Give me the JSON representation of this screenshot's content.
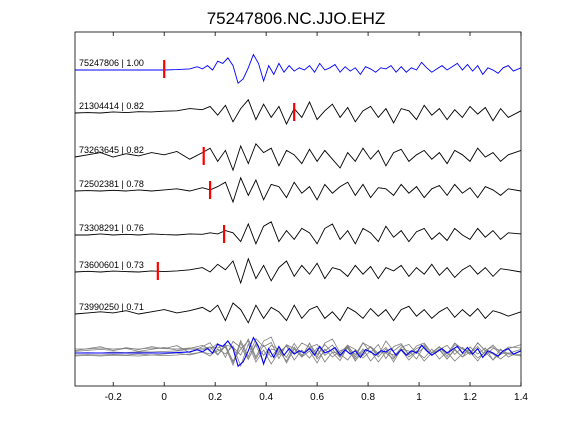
{
  "chart_data": {
    "type": "line",
    "title": "75247806.NC.JJO.EHZ",
    "xlabel": "",
    "ylabel": "",
    "xlim": [
      -0.35,
      1.4
    ],
    "xticks": [
      -0.2,
      0,
      0.2,
      0.4,
      0.6,
      0.8,
      1,
      1.2,
      1.4
    ],
    "xtick_labels": [
      "-0.2",
      "0",
      "0.2",
      "0.4",
      "0.6",
      "0.8",
      "1",
      "1.2",
      "1.4"
    ],
    "grid": false,
    "legend": "none",
    "colors": {
      "reference": "#0000ff",
      "trace": "#000000",
      "stack": "#808080",
      "pick": "#ff0000"
    },
    "series": [
      {
        "label": "75247806 | 1.00",
        "pick_time": 0.0,
        "color": "#0000ff",
        "x": [
          -0.35,
          -0.2,
          -0.05,
          0,
          0.05,
          0.1,
          0.13,
          0.15,
          0.17,
          0.19,
          0.21,
          0.23,
          0.25,
          0.27,
          0.29,
          0.31,
          0.33,
          0.35,
          0.37,
          0.39,
          0.41,
          0.43,
          0.45,
          0.47,
          0.49,
          0.51,
          0.53,
          0.55,
          0.57,
          0.59,
          0.61,
          0.63,
          0.65,
          0.67,
          0.69,
          0.71,
          0.73,
          0.75,
          0.77,
          0.79,
          0.81,
          0.83,
          0.85,
          0.87,
          0.89,
          0.91,
          0.93,
          0.95,
          0.97,
          0.99,
          1.01,
          1.03,
          1.05,
          1.07,
          1.09,
          1.11,
          1.13,
          1.15,
          1.17,
          1.19,
          1.21,
          1.23,
          1.25,
          1.27,
          1.29,
          1.31,
          1.33,
          1.35,
          1.37,
          1.4
        ],
        "y": [
          0,
          0,
          0,
          0,
          0.02,
          0.05,
          0.15,
          0.05,
          0.2,
          0,
          0.4,
          0.3,
          0.55,
          0.2,
          -0.6,
          -0.4,
          0.1,
          0.7,
          0.3,
          -0.5,
          0.2,
          -0.2,
          0.3,
          -0.1,
          0.2,
          -0.05,
          0.1,
          0,
          0.2,
          -0.1,
          0.3,
          0,
          0.1,
          0.25,
          -0.1,
          0.15,
          -0.05,
          0.1,
          -0.2,
          0.15,
          0.05,
          -0.1,
          0.1,
          0.05,
          0.2,
          -0.1,
          0.15,
          -0.1,
          0.1,
          0,
          0.35,
          0.1,
          -0.1,
          0.05,
          0.2,
          0,
          0.15,
          0.3,
          0,
          0.25,
          -0.05,
          0.2,
          -0.2,
          0.1,
          0,
          -0.15,
          0.1,
          0.2,
          -0.05,
          0.1
        ]
      },
      {
        "label": "21304414 | 0.82",
        "pick_time": 0.51,
        "color": "#000000",
        "x": [
          -0.35,
          -0.3,
          -0.25,
          -0.2,
          -0.15,
          -0.1,
          -0.05,
          0,
          0.05,
          0.1,
          0.15,
          0.18,
          0.21,
          0.24,
          0.27,
          0.3,
          0.33,
          0.36,
          0.39,
          0.42,
          0.45,
          0.48,
          0.51,
          0.54,
          0.57,
          0.6,
          0.63,
          0.66,
          0.69,
          0.72,
          0.75,
          0.78,
          0.81,
          0.84,
          0.87,
          0.9,
          0.93,
          0.96,
          0.99,
          1.02,
          1.05,
          1.08,
          1.11,
          1.14,
          1.17,
          1.2,
          1.23,
          1.26,
          1.29,
          1.32,
          1.35,
          1.4
        ],
        "y": [
          0,
          0.02,
          0,
          0.05,
          0.02,
          0.06,
          0.05,
          0.08,
          0.1,
          0.2,
          0.15,
          0.3,
          -0.1,
          0.35,
          -0.4,
          0.2,
          0.6,
          -0.3,
          0.4,
          -0.2,
          0.3,
          -0.5,
          0.2,
          -0.2,
          0.5,
          -0.3,
          0.1,
          0.4,
          -0.2,
          0.25,
          -0.4,
          0.1,
          0.3,
          -0.2,
          0.2,
          -0.45,
          0.2,
          0.1,
          -0.3,
          0.35,
          -0.1,
          0.2,
          -0.3,
          0.15,
          -0.2,
          0.3,
          -0.05,
          0.25,
          -0.35,
          0.2,
          -0.2,
          0.1
        ]
      },
      {
        "label": "73263645 | 0.82",
        "pick_time": 0.155,
        "color": "#000000",
        "x": [
          -0.35,
          -0.3,
          -0.25,
          -0.2,
          -0.15,
          -0.1,
          -0.05,
          0,
          0.05,
          0.1,
          0.15,
          0.18,
          0.21,
          0.24,
          0.27,
          0.3,
          0.33,
          0.36,
          0.39,
          0.42,
          0.45,
          0.48,
          0.51,
          0.54,
          0.57,
          0.6,
          0.63,
          0.66,
          0.69,
          0.72,
          0.75,
          0.78,
          0.81,
          0.84,
          0.87,
          0.9,
          0.93,
          0.96,
          0.99,
          1.02,
          1.05,
          1.08,
          1.11,
          1.14,
          1.17,
          1.2,
          1.23,
          1.26,
          1.29,
          1.32,
          1.35,
          1.4
        ],
        "y": [
          0,
          0.1,
          0.2,
          0,
          0.15,
          0.05,
          0.2,
          0.1,
          0.25,
          -0.1,
          0.2,
          0.4,
          -0.2,
          0.3,
          -0.6,
          0.5,
          -0.3,
          0.6,
          0.2,
          0.4,
          -0.4,
          0.3,
          0.1,
          -0.3,
          0.35,
          -0.2,
          0.3,
          -0.1,
          -0.5,
          0.2,
          -0.2,
          0.4,
          -0.1,
          0.3,
          -0.4,
          0.2,
          0.35,
          -0.2,
          0.1,
          0.3,
          -0.1,
          0.2,
          -0.3,
          0.3,
          0.1,
          -0.2,
          0.4,
          0,
          0.2,
          -0.2,
          0.1,
          0.3
        ]
      },
      {
        "label": "72502381 | 0.78",
        "pick_time": 0.18,
        "color": "#000000",
        "x": [
          -0.35,
          -0.3,
          -0.25,
          -0.2,
          -0.15,
          -0.1,
          -0.05,
          0,
          0.05,
          0.1,
          0.15,
          0.18,
          0.21,
          0.24,
          0.27,
          0.3,
          0.33,
          0.36,
          0.39,
          0.42,
          0.45,
          0.48,
          0.51,
          0.54,
          0.57,
          0.6,
          0.63,
          0.66,
          0.69,
          0.72,
          0.75,
          0.78,
          0.81,
          0.84,
          0.87,
          0.9,
          0.93,
          0.96,
          0.99,
          1.02,
          1.05,
          1.08,
          1.11,
          1.14,
          1.17,
          1.2,
          1.23,
          1.26,
          1.29,
          1.32,
          1.35,
          1.4
        ],
        "y": [
          0,
          0.02,
          0,
          0.03,
          0,
          0.05,
          0,
          0.05,
          0.1,
          0,
          0.15,
          0.05,
          0.2,
          0.4,
          -0.5,
          0.6,
          -0.2,
          0.5,
          -0.4,
          0.3,
          0.2,
          -0.3,
          0.4,
          -0.1,
          0.2,
          -0.4,
          0.3,
          -0.1,
          0.2,
          0.4,
          -0.2,
          0.3,
          -0.3,
          0.15,
          0.1,
          -0.2,
          0.3,
          -0.1,
          0.2,
          -0.3,
          0.1,
          0.25,
          -0.2,
          0.3,
          -0.1,
          0.15,
          -0.3,
          0.2,
          0.05,
          -0.2,
          0.1,
          0
        ]
      },
      {
        "label": "73308291 | 0.76",
        "pick_time": 0.235,
        "color": "#000000",
        "x": [
          -0.35,
          -0.3,
          -0.25,
          -0.2,
          -0.15,
          -0.1,
          -0.05,
          0,
          0.05,
          0.1,
          0.15,
          0.18,
          0.21,
          0.24,
          0.27,
          0.3,
          0.33,
          0.36,
          0.39,
          0.42,
          0.45,
          0.48,
          0.51,
          0.54,
          0.57,
          0.6,
          0.63,
          0.66,
          0.69,
          0.72,
          0.75,
          0.78,
          0.81,
          0.84,
          0.87,
          0.9,
          0.93,
          0.96,
          0.99,
          1.02,
          1.05,
          1.08,
          1.11,
          1.14,
          1.17,
          1.2,
          1.23,
          1.26,
          1.29,
          1.32,
          1.35,
          1.4
        ],
        "y": [
          0,
          0,
          0.05,
          0,
          0.03,
          0,
          0.05,
          0.02,
          0,
          0.05,
          0.03,
          0.1,
          0.05,
          0.2,
          0.1,
          -0.3,
          0.5,
          -0.4,
          0.4,
          0.6,
          -0.3,
          0.2,
          -0.2,
          0.3,
          0.1,
          -0.4,
          0.3,
          0.5,
          -0.2,
          0.2,
          -0.4,
          0.3,
          0.1,
          -0.3,
          0.4,
          -0.1,
          0.2,
          -0.3,
          0.15,
          0.3,
          -0.2,
          0.1,
          -0.25,
          0.3,
          0,
          -0.2,
          0.3,
          -0.1,
          0.2,
          -0.2,
          0.1,
          0.05
        ]
      },
      {
        "label": "73600601 | 0.73",
        "pick_time": -0.025,
        "color": "#000000",
        "x": [
          -0.35,
          -0.3,
          -0.25,
          -0.2,
          -0.15,
          -0.1,
          -0.05,
          0,
          0.05,
          0.1,
          0.15,
          0.18,
          0.21,
          0.24,
          0.27,
          0.3,
          0.33,
          0.36,
          0.39,
          0.42,
          0.45,
          0.48,
          0.51,
          0.54,
          0.57,
          0.6,
          0.63,
          0.66,
          0.69,
          0.72,
          0.75,
          0.78,
          0.81,
          0.84,
          0.87,
          0.9,
          0.93,
          0.96,
          0.99,
          1.02,
          1.05,
          1.08,
          1.11,
          1.14,
          1.17,
          1.2,
          1.23,
          1.26,
          1.29,
          1.32,
          1.35,
          1.4
        ],
        "y": [
          0,
          0.03,
          0,
          0.04,
          0.02,
          0,
          0.05,
          0.02,
          0.05,
          0.1,
          0.2,
          0,
          0.35,
          0.1,
          0.5,
          -0.5,
          0.6,
          -0.3,
          0.3,
          -0.4,
          0.2,
          0.5,
          -0.2,
          0.3,
          -0.1,
          0.4,
          -0.3,
          0.2,
          0.1,
          -0.2,
          0.3,
          -0.1,
          0.25,
          -0.3,
          0.2,
          0.05,
          0.3,
          -0.2,
          0.2,
          -0.1,
          0.35,
          -0.15,
          0.2,
          -0.25,
          0.1,
          0.3,
          -0.1,
          0.2,
          -0.2,
          0.15,
          0.1,
          0
        ]
      },
      {
        "label": "73990250 | 0.71",
        "pick_time": null,
        "color": "#000000",
        "x": [
          -0.35,
          -0.3,
          -0.25,
          -0.2,
          -0.15,
          -0.1,
          -0.05,
          0,
          0.05,
          0.1,
          0.15,
          0.18,
          0.21,
          0.24,
          0.27,
          0.3,
          0.33,
          0.36,
          0.39,
          0.42,
          0.45,
          0.48,
          0.51,
          0.54,
          0.57,
          0.6,
          0.63,
          0.66,
          0.69,
          0.72,
          0.75,
          0.78,
          0.81,
          0.84,
          0.87,
          0.9,
          0.93,
          0.96,
          0.99,
          1.02,
          1.05,
          1.08,
          1.11,
          1.14,
          1.17,
          1.2,
          1.23,
          1.26,
          1.29,
          1.32,
          1.35,
          1.4
        ],
        "y": [
          0,
          0.05,
          0.1,
          0.05,
          0.15,
          0,
          0.1,
          0.2,
          0.05,
          0.15,
          0.3,
          0.1,
          0.4,
          -0.3,
          0.5,
          0.2,
          -0.4,
          0.4,
          -0.2,
          0.3,
          0.1,
          -0.3,
          0.4,
          -0.2,
          0.2,
          0.35,
          -0.2,
          0.1,
          -0.3,
          0.3,
          0.1,
          -0.2,
          0.25,
          -0.1,
          0.2,
          -0.3,
          0.2,
          0.35,
          -0.1,
          0.2,
          -0.2,
          0.1,
          0.3,
          -0.15,
          0.2,
          -0.1,
          0.25,
          -0.2,
          0.15,
          0.05,
          -0.1,
          0.1
        ]
      }
    ],
    "stack": {
      "description_values_only": true,
      "offsets": [
        0.0,
        0.12,
        -0.1,
        0.2,
        -0.15,
        0.08
      ],
      "reference_color": "#0000ff",
      "trace_color": "#808080"
    }
  }
}
